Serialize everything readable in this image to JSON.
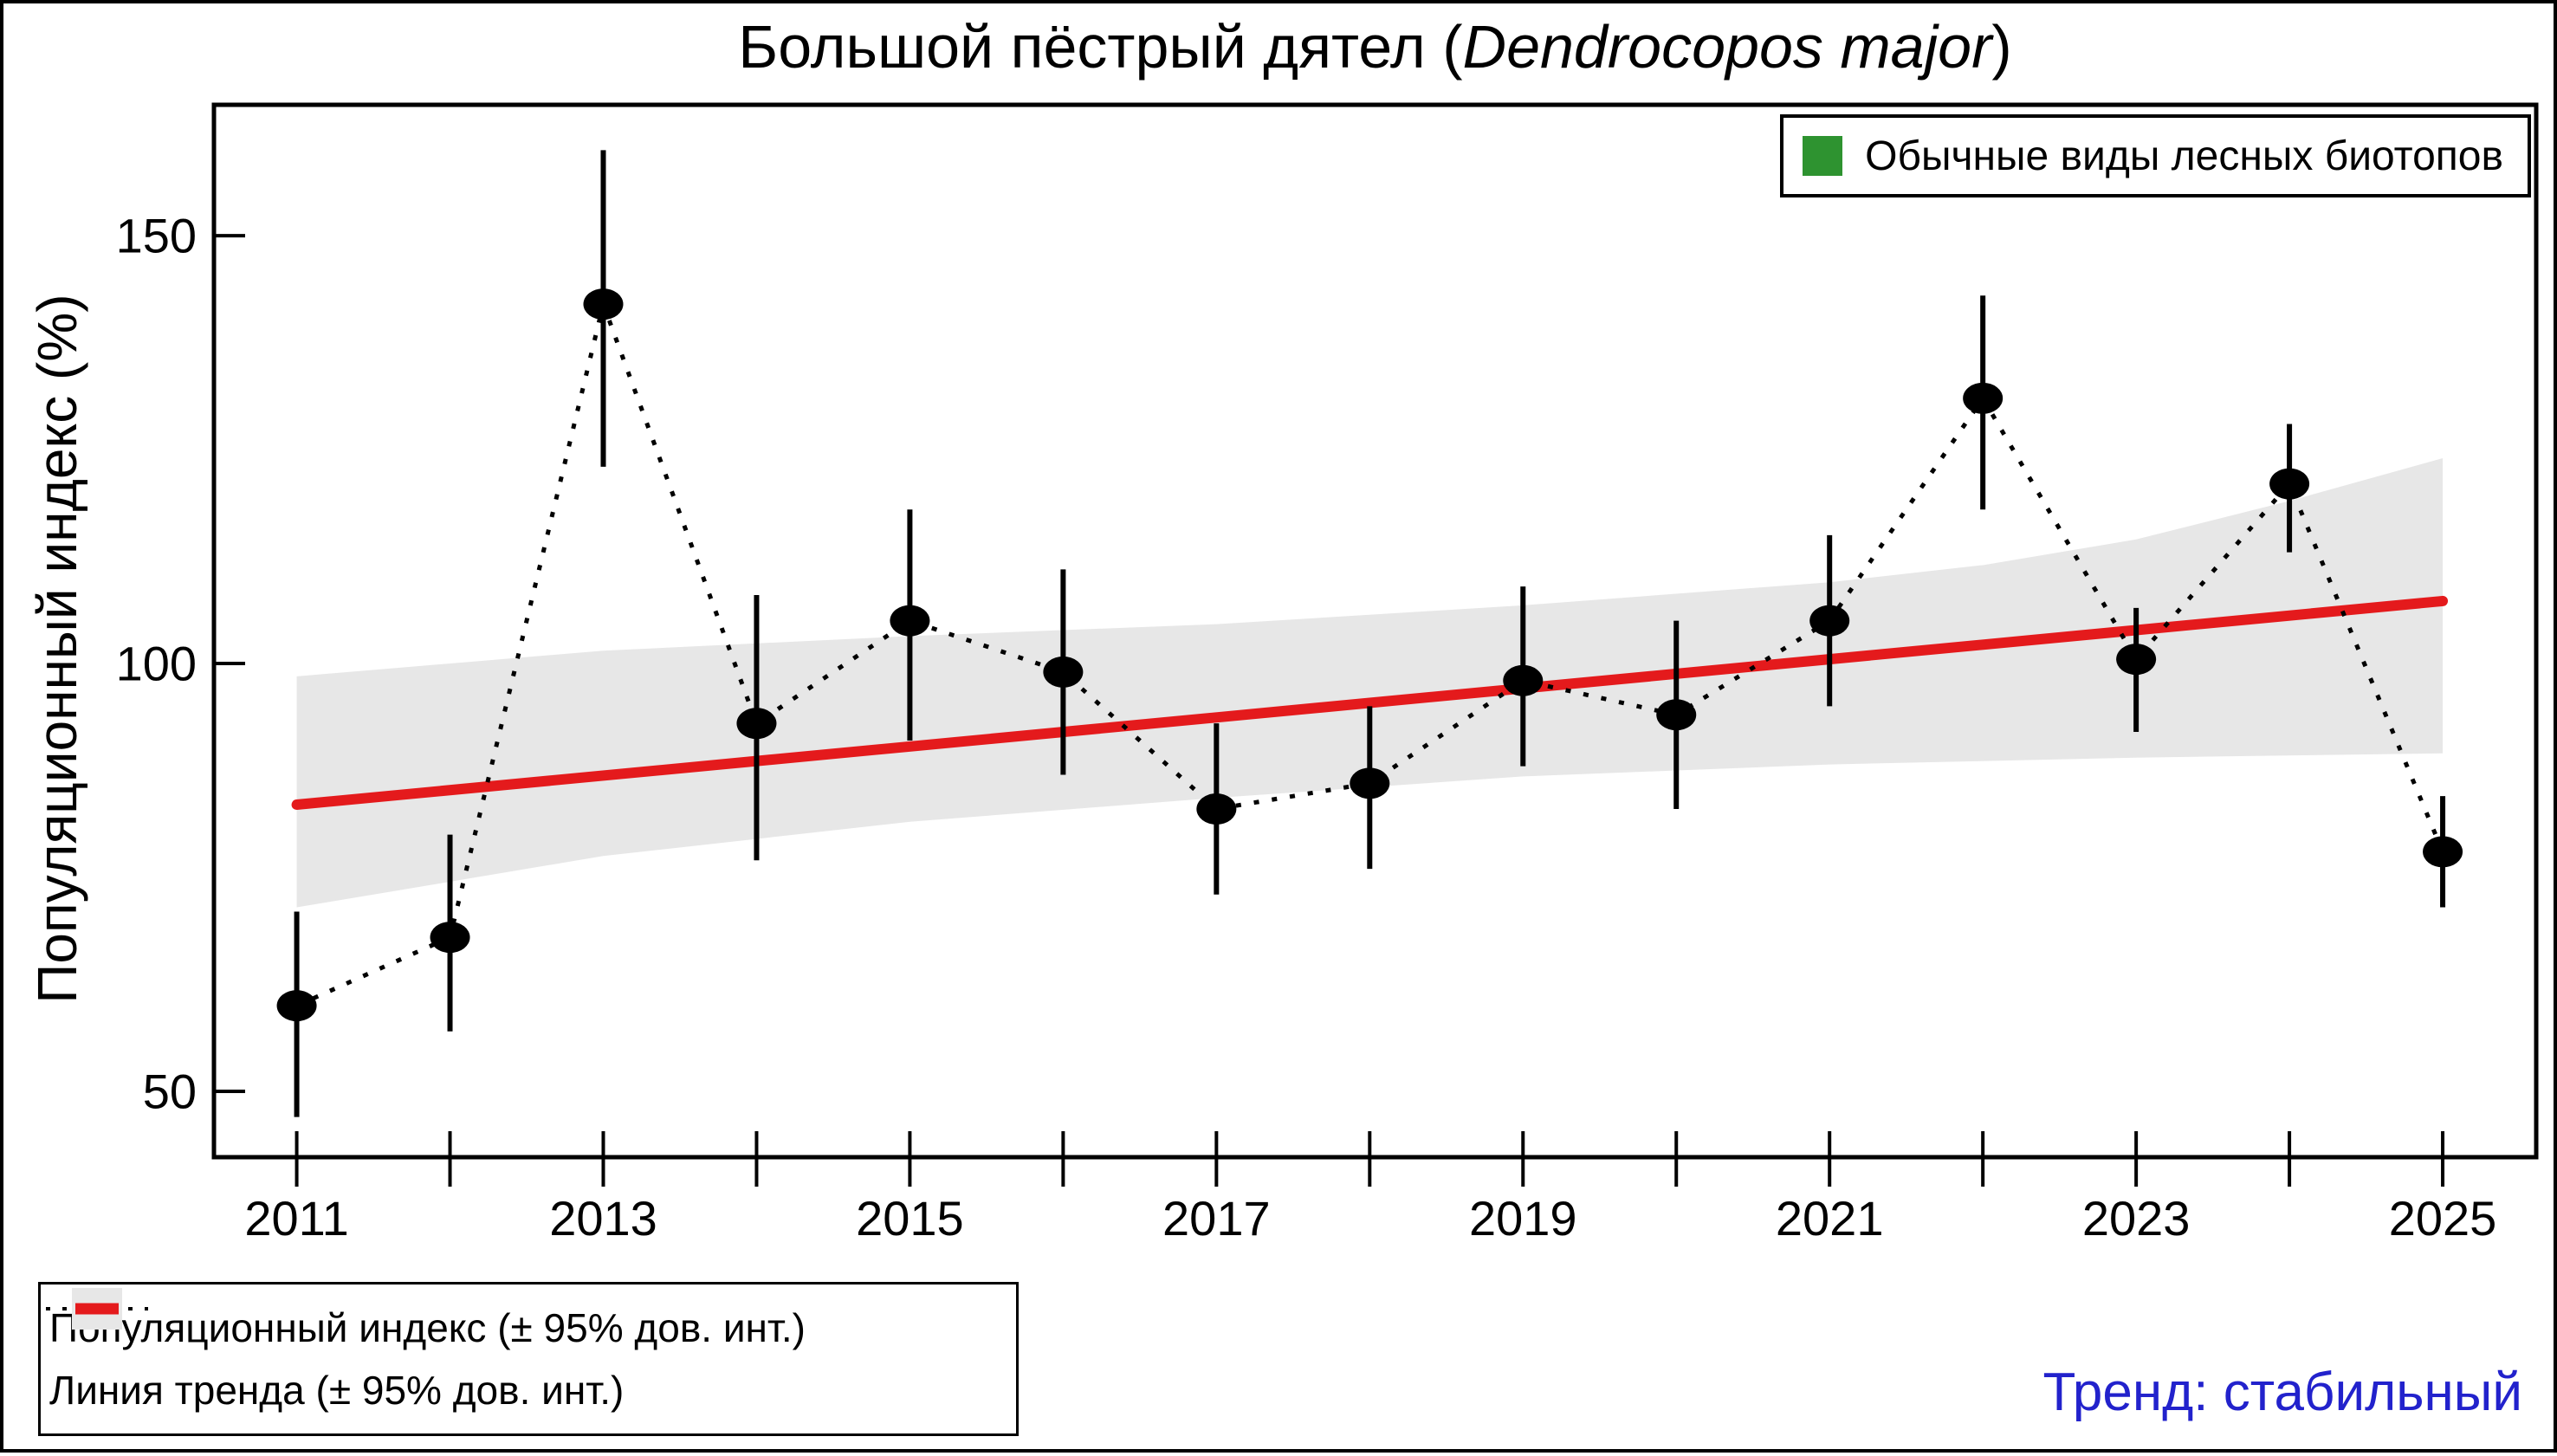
{
  "title": {
    "prefix": "Большой пёстрый дятел (",
    "species": "Dendrocopos major",
    "suffix": ")"
  },
  "y_axis": {
    "label": "Популяционный индекс (%)",
    "tick_labels": [
      "50",
      "100",
      "150"
    ],
    "tick_values": [
      50,
      100,
      150
    ]
  },
  "x_axis": {
    "labeled_years": [
      2011,
      2013,
      2015,
      2017,
      2019,
      2021,
      2023,
      2025
    ]
  },
  "legend_top": {
    "label": "Обычные виды лесных биотопов",
    "swatch_color": "#2e932e"
  },
  "legend_bottom": {
    "item_points": "Популяционный индекс (± 95% дов. инт.)",
    "item_trend": "Линия тренда (± 95% дов. инт.)"
  },
  "trend_note": {
    "text": "Тренд: стабильный",
    "color": "#2222cc"
  },
  "colors": {
    "trend_line": "#e41a1c",
    "confidence_band": "#e7e7e7",
    "points": "#000000",
    "legend_swatch_green": "#2e9330",
    "axis": "#000000"
  },
  "chart_data": {
    "type": "line",
    "title": "Большой пёстрый дятел (Dendrocopos major)",
    "ylabel": "Популяционный индекс (%)",
    "xlabel": "",
    "grid": false,
    "legend_position": "top-right",
    "xlim": [
      2010.46,
      2025.61
    ],
    "ylim": [
      42.3,
      165.3
    ],
    "x": [
      2011,
      2012,
      2013,
      2014,
      2015,
      2016,
      2017,
      2018,
      2019,
      2020,
      2021,
      2022,
      2023,
      2024,
      2025
    ],
    "series": [
      {
        "name": "Популяционный индекс (± 95% дов. инт.)",
        "values": [
          60,
          68,
          142,
          93,
          105,
          99,
          83,
          86,
          98,
          94,
          105,
          131,
          100.5,
          121,
          78
        ],
        "ci_low": [
          47,
          57,
          123,
          77,
          91,
          87,
          73,
          76,
          88,
          83,
          95,
          118,
          92,
          113,
          71.5
        ],
        "ci_high": [
          71,
          80,
          160,
          108,
          118,
          111,
          93,
          95,
          109,
          105,
          115,
          143,
          106.5,
          128,
          84.5
        ]
      }
    ],
    "trend_line": {
      "x": [
        2011,
        2025
      ],
      "y": [
        83.5,
        107.3
      ]
    },
    "trend_band": {
      "x_top": [
        2011,
        2013,
        2015,
        2017,
        2019,
        2021,
        2022,
        2023,
        2024,
        2025
      ],
      "top": [
        98.5,
        101.5,
        103.2,
        104.6,
        106.8,
        109.5,
        111.5,
        114.5,
        119,
        124
      ],
      "x_bottom": [
        2011,
        2013,
        2015,
        2017,
        2019,
        2021,
        2023,
        2025
      ],
      "bottom": [
        71.5,
        77.5,
        81.5,
        84.3,
        86.8,
        88.2,
        89,
        89.5
      ]
    }
  }
}
